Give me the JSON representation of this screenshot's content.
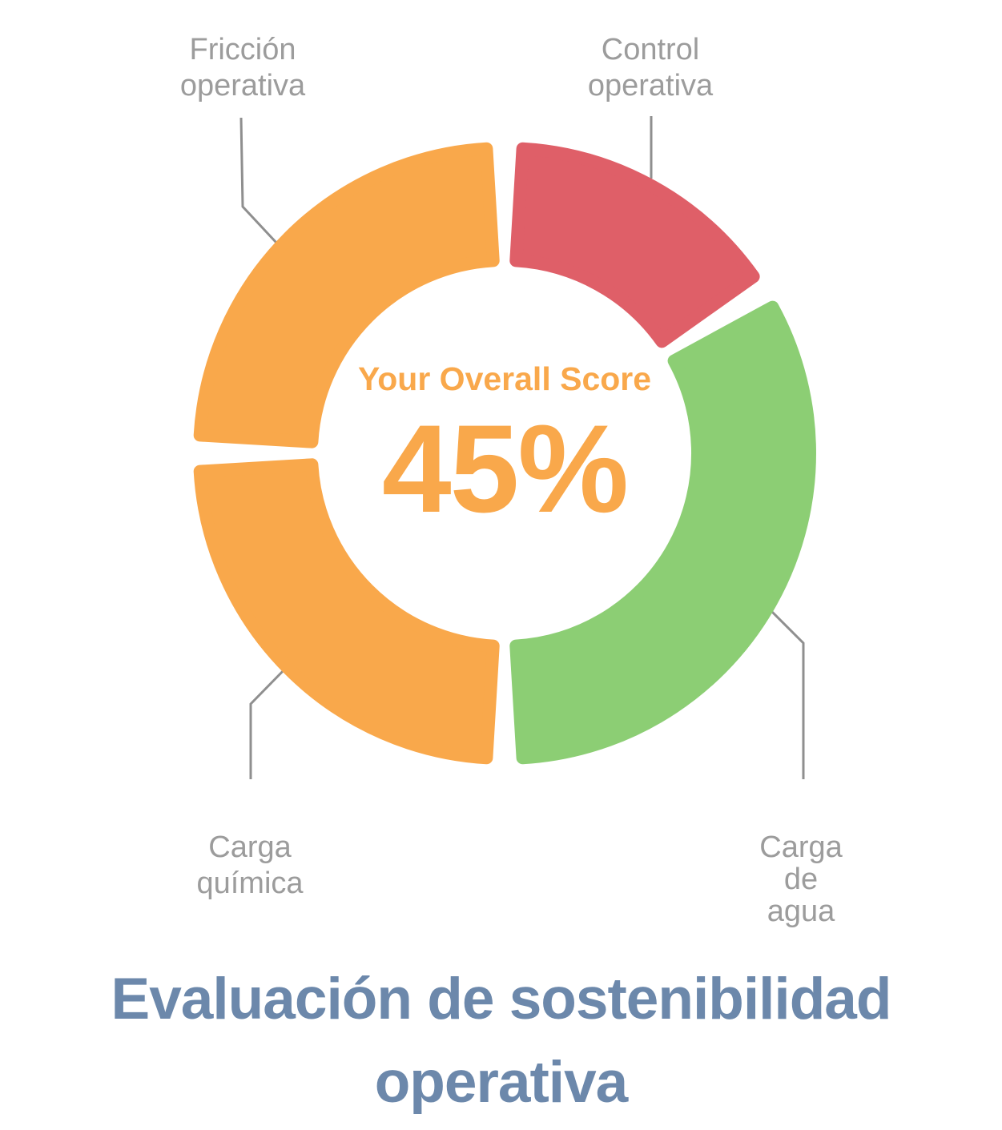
{
  "chart_data": {
    "type": "pie",
    "subtype": "donut",
    "title": "Evaluación de sostenibilidad operativa",
    "title_lines": [
      "Evaluación de sostenibilidad",
      "operativa"
    ],
    "title_color": "#6C88AB",
    "center_label": "Your Overall Score",
    "center_value": "45%",
    "center_text_color": "#F9A84B",
    "callout_label_color": "#9C9C9C",
    "leader_line_color": "#8F8F8F",
    "background_color": "#FFFFFF",
    "legend_position": "callout-labels",
    "segments": [
      {
        "label": "Control operativa",
        "label_lines": [
          "Control",
          "operativa"
        ],
        "color": "#DF5F68",
        "start_angle": 0,
        "end_angle": 58,
        "sweep_degrees": 58
      },
      {
        "label": "Carga de agua",
        "label_lines": [
          "Carga",
          "de",
          "agua"
        ],
        "color": "#8CCE74",
        "start_angle": 58,
        "end_angle": 180,
        "sweep_degrees": 122
      },
      {
        "label": "Carga química",
        "label_lines": [
          "Carga",
          "química"
        ],
        "color": "#F9A84B",
        "start_angle": 180,
        "end_angle": 270,
        "sweep_degrees": 90
      },
      {
        "label": "Fricción operativa",
        "label_lines": [
          "Fricción",
          "operativa"
        ],
        "color": "#F9A84B",
        "start_angle": 270,
        "end_angle": 360,
        "sweep_degrees": 90
      }
    ]
  }
}
